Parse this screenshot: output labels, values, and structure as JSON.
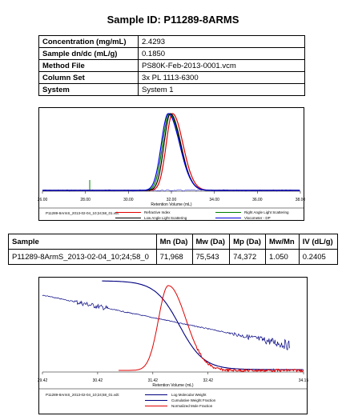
{
  "title": "Sample ID: P11289-8ARMS",
  "properties": [
    {
      "label": "Concentration (mg/mL)",
      "value": "2.4293"
    },
    {
      "label": "Sample dn/dc (mL/g)",
      "value": "0.1850"
    },
    {
      "label": "Method File",
      "value": "PS80K-Feb-2013-0001.vcm"
    },
    {
      "label": "Column Set",
      "value": "3x PL 1113-6300"
    },
    {
      "label": "System",
      "value": "System 1"
    }
  ],
  "results": {
    "headers": [
      "Sample",
      "Mn (Da)",
      "Mw (Da)",
      "Mp (Da)",
      "Mw/Mn",
      "IV (dL/g)"
    ],
    "row": [
      "P11289-8ArmS_2013-02-04_10;24;58_0",
      "71,968",
      "75,543",
      "74,372",
      "1.050",
      "0.2405"
    ]
  },
  "chart_data": [
    {
      "type": "line",
      "xlabel": "Retention Volume (mL)",
      "ticks": [
        "26.00",
        "28.00",
        "30.00",
        "32.00",
        "34.00",
        "36.00",
        "38.00"
      ],
      "xlim": [
        26,
        38
      ],
      "legend_file": "P11289-8ArmS_2013-02-04_10;24;58_01.vdt:",
      "series": [
        {
          "name": "Refractive Index",
          "color": "#e00000",
          "peak": 32.05,
          "width": 0.55
        },
        {
          "name": "Right Angle Light Scattering",
          "color": "#008000",
          "peak": 31.9,
          "width": 0.58
        },
        {
          "name": "Low Angle Light Scattering",
          "color": "#000000",
          "peak": 31.95,
          "width": 0.55
        },
        {
          "name": "Viscometer - DP",
          "color": "#0000e0",
          "peak": 31.85,
          "width": 0.6
        }
      ]
    },
    {
      "type": "line",
      "xlabel": "Retention Volume (mL)",
      "ticks": [
        "29.42",
        "30.42",
        "31.42",
        "32.42",
        "34.15"
      ],
      "xlim": [
        29.42,
        34.15
      ],
      "legend_file": "P11289-8ArmS_2013-02-04_10;24;58_01.vdt:",
      "series": [
        {
          "name": "Log Molecular Weight",
          "color": "#000080"
        },
        {
          "name": "Cumulative Weight Fraction",
          "color": "#000080"
        },
        {
          "name": "Normalized Mole Fraction",
          "color": "#e00000"
        }
      ]
    }
  ]
}
